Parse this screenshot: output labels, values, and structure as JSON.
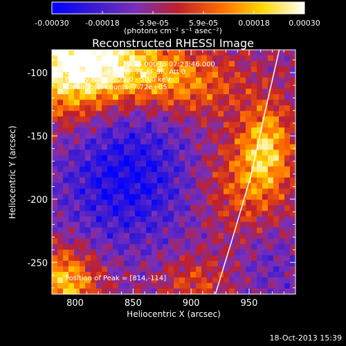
{
  "colorbar": {
    "ticks": [
      "-0.00030",
      "-0.00018",
      "-5.9e-05",
      "5.9e-05",
      "0.00018",
      "0.00030"
    ],
    "units_label": "(photons cm⁻² s⁻¹ asec⁻²)",
    "range": [
      -0.0003,
      0.0003
    ],
    "colors": [
      "#0000ff",
      "#3b1bd0",
      "#7a2fb8",
      "#c0202a",
      "#ff6a00",
      "#ffd800",
      "#ffffff"
    ]
  },
  "annotations": {
    "time_range": "18-Oct-2013 07:19:36.000 to 07:23:46.000",
    "detectors": "Detectors: 3F 5F 6F 7F 8F 9F, Att 0",
    "energy": "Energy Range: 25.0 - 50.0 keV",
    "counts": "Clean    Total counts: 7.72e+05",
    "peak": "Position of Peak = [814,-114]"
  },
  "footer": {
    "timestamp": "18-Oct-2013 15:39"
  },
  "chart_data": {
    "type": "heatmap",
    "title": "Reconstructed RHESSI Image",
    "xlabel": "Heliocentric X (arcsec)",
    "ylabel": "Heliocentric Y (arcsec)",
    "xlim": [
      780,
      990
    ],
    "ylim": [
      -275,
      -82
    ],
    "xticks": [
      800,
      850,
      900,
      950
    ],
    "yticks": [
      -100,
      -150,
      -200,
      -250
    ],
    "peak": [
      814,
      -114
    ],
    "solar_limb": [
      [
        921,
        -275
      ],
      [
        936,
        -230
      ],
      [
        952,
        -180
      ],
      [
        964,
        -130
      ],
      [
        976,
        -82
      ]
    ]
  }
}
